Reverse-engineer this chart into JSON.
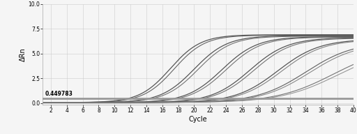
{
  "title": "",
  "xlabel": "Cycle",
  "ylabel": "ΔRn",
  "xlim": [
    1,
    40
  ],
  "ylim": [
    -0.15,
    10.0
  ],
  "yticks": [
    0.0,
    2.5,
    5.0,
    7.5,
    10.0
  ],
  "xticks": [
    2,
    4,
    6,
    8,
    10,
    12,
    14,
    16,
    18,
    20,
    22,
    24,
    26,
    28,
    30,
    32,
    34,
    36,
    38,
    40
  ],
  "threshold": 0.449783,
  "threshold_label": "0.449783",
  "background_color": "#f5f5f5",
  "grid_color": "#cccccc",
  "line_color_dark": "#444444",
  "line_color_mid": "#777777",
  "threshold_color": "#999999",
  "curves": [
    {
      "ct": 17.0,
      "top": 6.9,
      "k": 0.52,
      "color": "#444444",
      "lw": 0.9
    },
    {
      "ct": 17.5,
      "top": 6.85,
      "k": 0.52,
      "color": "#555555",
      "lw": 0.8
    },
    {
      "ct": 20.0,
      "top": 6.8,
      "k": 0.48,
      "color": "#444444",
      "lw": 0.9
    },
    {
      "ct": 20.5,
      "top": 6.75,
      "k": 0.48,
      "color": "#666666",
      "lw": 0.8
    },
    {
      "ct": 23.5,
      "top": 6.7,
      "k": 0.45,
      "color": "#444444",
      "lw": 0.9
    },
    {
      "ct": 24.0,
      "top": 6.65,
      "k": 0.45,
      "color": "#666666",
      "lw": 0.8
    },
    {
      "ct": 27.0,
      "top": 6.6,
      "k": 0.42,
      "color": "#444444",
      "lw": 0.9
    },
    {
      "ct": 27.5,
      "top": 6.55,
      "k": 0.42,
      "color": "#666666",
      "lw": 0.8
    },
    {
      "ct": 30.5,
      "top": 6.45,
      "k": 0.38,
      "color": "#444444",
      "lw": 0.9
    },
    {
      "ct": 31.0,
      "top": 6.4,
      "k": 0.38,
      "color": "#777777",
      "lw": 0.8
    },
    {
      "ct": 34.0,
      "top": 6.2,
      "k": 0.33,
      "color": "#555555",
      "lw": 0.85
    },
    {
      "ct": 34.5,
      "top": 6.1,
      "k": 0.33,
      "color": "#777777",
      "lw": 0.75
    },
    {
      "ct": 37.5,
      "top": 5.8,
      "k": 0.28,
      "color": "#666666",
      "lw": 0.8
    },
    {
      "ct": 38.0,
      "top": 5.6,
      "k": 0.28,
      "color": "#888888",
      "lw": 0.75
    }
  ],
  "baseline": 0.05
}
